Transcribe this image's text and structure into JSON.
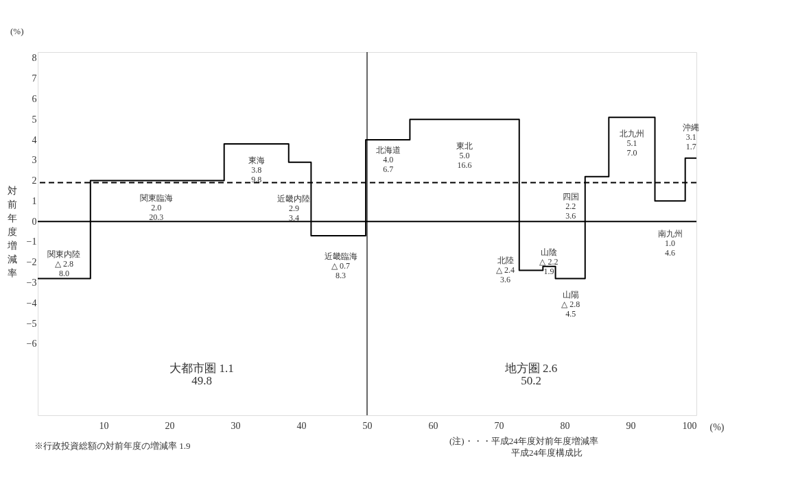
{
  "chart_data": {
    "type": "step",
    "ylabel": "対前年度増減率",
    "xlabel": "(%)",
    "x": [
      0,
      8.0,
      28.3,
      38.1,
      41.5,
      49.8,
      56.5,
      73.1,
      76.7,
      78.6,
      83.1,
      86.7,
      93.7,
      98.3,
      100
    ],
    "series": [
      {
        "color": "#000000",
        "values": [
          -2.8,
          2.0,
          3.8,
          2.9,
          -0.7,
          4.0,
          5.0,
          -2.4,
          -2.2,
          -2.8,
          2.2,
          5.1,
          1.0,
          3.1,
          3.1
        ]
      }
    ],
    "xlim": [
      0,
      100
    ],
    "xticks": [
      10,
      20,
      30,
      40,
      50,
      60,
      70,
      80,
      90,
      100
    ],
    "ylim": [
      -9.5,
      8.3
    ],
    "yticks": [
      -6,
      -5,
      -4,
      -3,
      -2,
      -1,
      0,
      1,
      2,
      3,
      4,
      5,
      6,
      7,
      8
    ],
    "grid": false,
    "marker": "none",
    "line_style": "solid",
    "ref_lines": [
      {
        "axis": "y",
        "value": 0,
        "color": "#000000",
        "line_style": "solid"
      },
      {
        "axis": "y",
        "value": 1.9,
        "color": "#000000",
        "line_style": "dashed"
      },
      {
        "axis": "x",
        "value": 50,
        "color": "#000000",
        "line_style": "solid"
      }
    ],
    "annotations": [
      "関東内陸\n△ 2.8\n8.0",
      "関東臨海\n2.0\n20.3",
      "東海\n3.8\n9.8",
      "近畿内陸\n2.9\n3.4",
      "近畿臨海\n△ 0.7\n8.3",
      "北海道\n4.0\n6.7",
      "東北\n5.0\n16.6",
      "北陸\n△ 2.4\n3.6",
      "山陰\n△ 2.2\n1.9",
      "山陽\n△ 2.8\n4.5",
      "四国\n2.2\n3.6",
      "北九州\n5.1\n7.0",
      "南九州\n1.0\n4.6",
      "沖縄\n3.1\n1.7",
      "大都市圏   1.1\n               49.8",
      "地方圏   2.6\n             50.2",
      "(%)",
      "※行政投資総額の対前年度の増減率 1.9",
      "(注)・・・平成24年度対前年度増減率",
      "平成24年度構成比"
    ]
  }
}
